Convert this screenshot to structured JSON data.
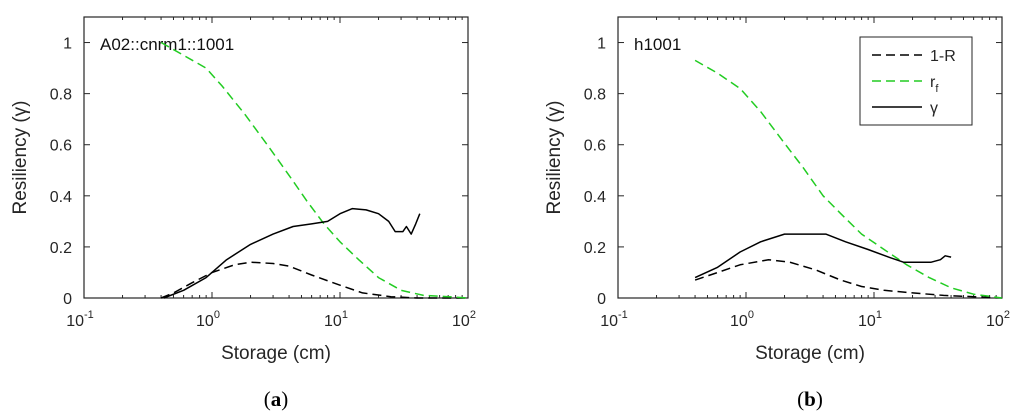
{
  "chart_data": [
    {
      "type": "line",
      "panel_label": "a",
      "annotation": "A02::cnrm1::1001",
      "xlabel": "Storage (cm)",
      "ylabel": "Resiliency (γ)",
      "xscale": "log",
      "xlim": [
        0.1,
        100
      ],
      "ylim": [
        0,
        1.1
      ],
      "xticks": [
        {
          "base": "10",
          "exp": "-1",
          "value": 0.1
        },
        {
          "base": "10",
          "exp": "0",
          "value": 1
        },
        {
          "base": "10",
          "exp": "1",
          "value": 10
        },
        {
          "base": "10",
          "exp": "2",
          "value": 100
        }
      ],
      "yticks": [
        "0",
        "0.2",
        "0.4",
        "0.6",
        "0.8",
        "1"
      ],
      "yticks_values": [
        0,
        0.2,
        0.4,
        0.6,
        0.8,
        1.0
      ],
      "legend": false,
      "series": [
        {
          "style": "dashed",
          "color": "#000000",
          "points": [
            [
              0.4,
              0.0
            ],
            [
              0.5,
              0.02
            ],
            [
              0.7,
              0.06
            ],
            [
              1.0,
              0.1
            ],
            [
              1.5,
              0.13
            ],
            [
              2.0,
              0.14
            ],
            [
              3.0,
              0.135
            ],
            [
              4.0,
              0.125
            ],
            [
              6.0,
              0.09
            ],
            [
              10,
              0.05
            ],
            [
              15,
              0.02
            ],
            [
              25,
              0.005
            ],
            [
              40,
              0.0
            ],
            [
              100,
              0.0
            ]
          ]
        },
        {
          "style": "dashed",
          "color": "#22cc22",
          "points": [
            [
              0.4,
              1.0
            ],
            [
              0.6,
              0.95
            ],
            [
              0.9,
              0.9
            ],
            [
              1.2,
              0.83
            ],
            [
              1.8,
              0.72
            ],
            [
              2.7,
              0.6
            ],
            [
              4.0,
              0.48
            ],
            [
              5.5,
              0.38
            ],
            [
              7.5,
              0.29
            ],
            [
              10,
              0.22
            ],
            [
              14,
              0.15
            ],
            [
              20,
              0.08
            ],
            [
              30,
              0.03
            ],
            [
              45,
              0.01
            ],
            [
              70,
              0.005
            ],
            [
              100,
              0.0
            ]
          ]
        },
        {
          "style": "solid",
          "color": "#000000",
          "points": [
            [
              0.42,
              0.0
            ],
            [
              0.6,
              0.03
            ],
            [
              0.9,
              0.08
            ],
            [
              1.3,
              0.15
            ],
            [
              2.0,
              0.21
            ],
            [
              3.0,
              0.25
            ],
            [
              4.3,
              0.28
            ],
            [
              6.0,
              0.29
            ],
            [
              8.0,
              0.3
            ],
            [
              10,
              0.33
            ],
            [
              12.5,
              0.35
            ],
            [
              16,
              0.345
            ],
            [
              20,
              0.33
            ],
            [
              24,
              0.3
            ],
            [
              27,
              0.26
            ],
            [
              31,
              0.26
            ],
            [
              33,
              0.28
            ],
            [
              36,
              0.25
            ],
            [
              39,
              0.29
            ],
            [
              42,
              0.33
            ]
          ]
        }
      ]
    },
    {
      "type": "line",
      "panel_label": "b",
      "annotation": "h1001",
      "xlabel": "Storage (cm)",
      "ylabel": "Resiliency (γ)",
      "xscale": "log",
      "xlim": [
        0.1,
        100
      ],
      "ylim": [
        0,
        1.1
      ],
      "xticks": [
        {
          "base": "10",
          "exp": "-1",
          "value": 0.1
        },
        {
          "base": "10",
          "exp": "0",
          "value": 1
        },
        {
          "base": "10",
          "exp": "1",
          "value": 10
        },
        {
          "base": "10",
          "exp": "2",
          "value": 100
        }
      ],
      "yticks": [
        "0",
        "0.2",
        "0.4",
        "0.6",
        "0.8",
        "1"
      ],
      "yticks_values": [
        0,
        0.2,
        0.4,
        0.6,
        0.8,
        1.0
      ],
      "legend": true,
      "legend_position": "top-right",
      "legend_entries": [
        {
          "label": "1-R",
          "sub": "",
          "style": "dashed",
          "color": "#000000"
        },
        {
          "label": "r",
          "sub": "f",
          "style": "dashed",
          "color": "#22cc22"
        },
        {
          "label": "γ",
          "sub": "",
          "style": "solid",
          "color": "#000000"
        }
      ],
      "series": [
        {
          "name": "1-R",
          "style": "dashed",
          "color": "#000000",
          "points": [
            [
              0.4,
              0.07
            ],
            [
              0.6,
              0.1
            ],
            [
              0.9,
              0.13
            ],
            [
              1.5,
              0.15
            ],
            [
              2.2,
              0.14
            ],
            [
              3.5,
              0.11
            ],
            [
              5.5,
              0.07
            ],
            [
              8,
              0.045
            ],
            [
              12,
              0.03
            ],
            [
              20,
              0.02
            ],
            [
              35,
              0.01
            ],
            [
              60,
              0.005
            ],
            [
              100,
              0.0
            ]
          ]
        },
        {
          "name": "rf",
          "style": "dashed",
          "color": "#22cc22",
          "points": [
            [
              0.4,
              0.93
            ],
            [
              0.6,
              0.88
            ],
            [
              0.9,
              0.82
            ],
            [
              1.3,
              0.73
            ],
            [
              1.9,
              0.62
            ],
            [
              2.8,
              0.51
            ],
            [
              4.0,
              0.4
            ],
            [
              5.5,
              0.33
            ],
            [
              8,
              0.25
            ],
            [
              12,
              0.19
            ],
            [
              18,
              0.13
            ],
            [
              27,
              0.08
            ],
            [
              40,
              0.04
            ],
            [
              60,
              0.015
            ],
            [
              100,
              0.0
            ]
          ]
        },
        {
          "name": "γ",
          "style": "solid",
          "color": "#000000",
          "points": [
            [
              0.4,
              0.08
            ],
            [
              0.6,
              0.12
            ],
            [
              0.9,
              0.18
            ],
            [
              1.3,
              0.22
            ],
            [
              2.0,
              0.25
            ],
            [
              3.0,
              0.25
            ],
            [
              4.2,
              0.25
            ],
            [
              6.0,
              0.22
            ],
            [
              9,
              0.19
            ],
            [
              13,
              0.16
            ],
            [
              17,
              0.14
            ],
            [
              22,
              0.14
            ],
            [
              28,
              0.14
            ],
            [
              33,
              0.15
            ],
            [
              36,
              0.165
            ],
            [
              40,
              0.16
            ]
          ]
        }
      ]
    }
  ]
}
